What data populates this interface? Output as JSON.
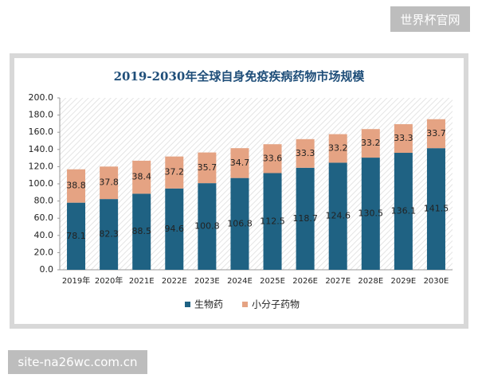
{
  "chart_data": {
    "type": "stacked_bar",
    "title": "2019-2030年全球自身免疫疾病药物市场规模",
    "categories": [
      "2019年",
      "2020年",
      "2021E",
      "2022E",
      "2023E",
      "2024E",
      "2025E",
      "2026E",
      "2027E",
      "2028E",
      "2029E",
      "2030E"
    ],
    "series": [
      {
        "name": "生物药",
        "color": "#1f6283",
        "values": [
          78.1,
          82.3,
          88.5,
          94.6,
          100.8,
          106.8,
          112.5,
          118.7,
          124.6,
          130.5,
          136.1,
          141.5
        ]
      },
      {
        "name": "小分子药物",
        "color": "#e5a383",
        "values": [
          38.8,
          37.8,
          38.4,
          37.2,
          35.7,
          34.7,
          33.6,
          33.3,
          33.2,
          33.2,
          33.3,
          33.7
        ]
      }
    ],
    "ylim": [
      0,
      200
    ],
    "yticks": [
      {
        "value": 0,
        "label": "0.0"
      },
      {
        "value": 20,
        "label": "20.0"
      },
      {
        "value": 40,
        "label": "40.0"
      },
      {
        "value": 60,
        "label": "60.0"
      },
      {
        "value": 80,
        "label": "80.0"
      },
      {
        "value": 100,
        "label": "100.0"
      },
      {
        "value": 120,
        "label": "120.0"
      },
      {
        "value": 140,
        "label": "140.0"
      },
      {
        "value": 160,
        "label": "160.0"
      },
      {
        "value": 180,
        "label": "180.0"
      },
      {
        "value": 200,
        "label": "200.0"
      }
    ],
    "legend": "bottom"
  },
  "watermarks": [
    "世界杯官网",
    "site-na26wc.com.cn"
  ]
}
